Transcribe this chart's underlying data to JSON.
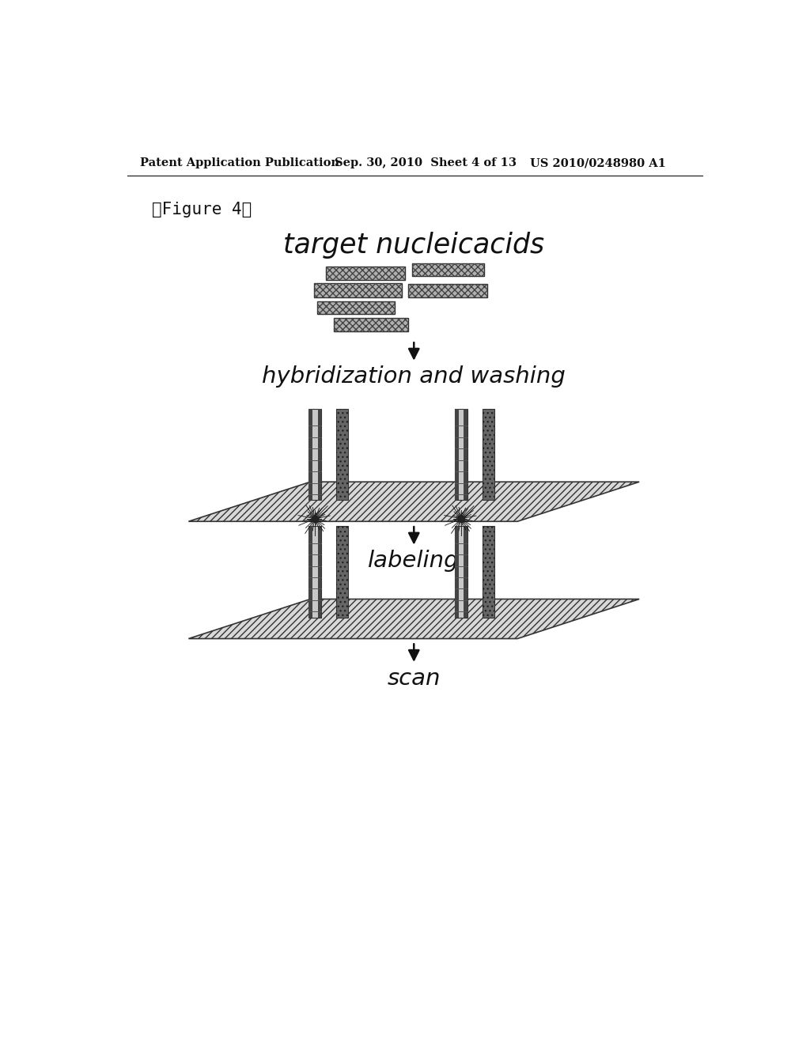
{
  "bg_color": "#ffffff",
  "header_left": "Patent Application Publication",
  "header_mid": "Sep. 30, 2010  Sheet 4 of 13",
  "header_right": "US 2010/0248980 A1",
  "figure_label": "『Figure 4』",
  "label1": "target nucleicacids",
  "label2": "hybridization and washing",
  "label3": "labeling",
  "label4": "scan",
  "strand_fill": "#aaaaaa",
  "strand_outline": "#444444",
  "pillar_dark": "#555555",
  "pillar_light": "#cccccc",
  "surface_fill": "#dddddd",
  "surface_outline": "#333333"
}
